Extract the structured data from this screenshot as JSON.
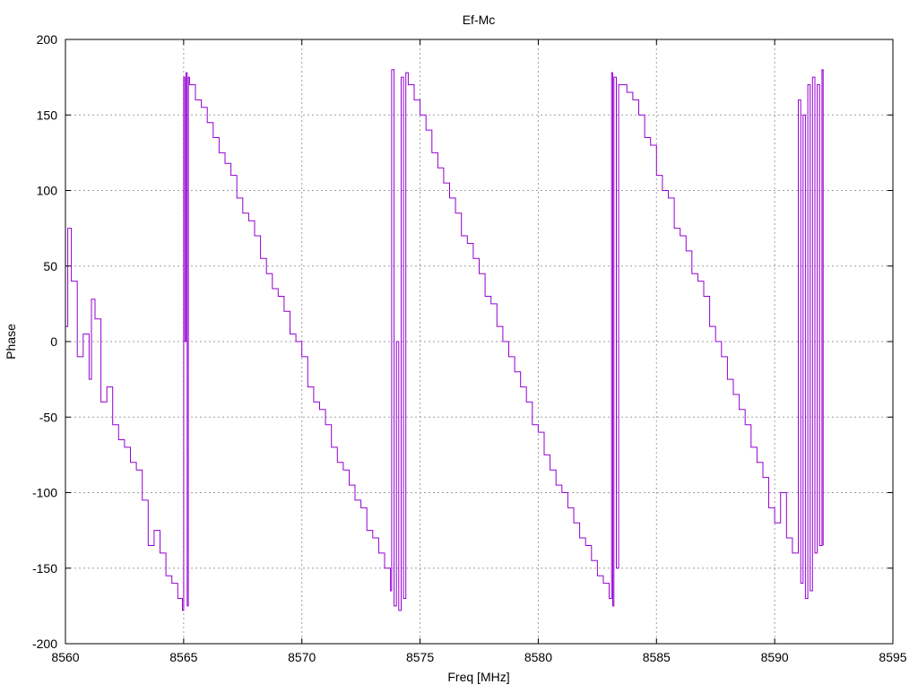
{
  "chart_data": {
    "type": "line",
    "title": "Ef-Mc",
    "xlabel": "Freq [MHz]",
    "ylabel": "Phase",
    "xlim": [
      8560,
      8595
    ],
    "ylim": [
      -200,
      200
    ],
    "xticks": [
      8560,
      8565,
      8570,
      8575,
      8580,
      8585,
      8590,
      8595
    ],
    "yticks": [
      -200,
      -150,
      -100,
      -50,
      0,
      50,
      100,
      150,
      200
    ],
    "grid": true,
    "series": [
      {
        "name": "Ef-Mc",
        "color": "#9400d3",
        "style": "steps",
        "points": [
          [
            8560,
            10
          ],
          [
            8560.1,
            75
          ],
          [
            8560.25,
            40
          ],
          [
            8560.5,
            -10
          ],
          [
            8560.75,
            5
          ],
          [
            8561,
            -25
          ],
          [
            8561.1,
            28
          ],
          [
            8561.25,
            15
          ],
          [
            8561.5,
            -40
          ],
          [
            8561.75,
            -30
          ],
          [
            8562,
            -55
          ],
          [
            8562.25,
            -65
          ],
          [
            8562.5,
            -70
          ],
          [
            8562.75,
            -80
          ],
          [
            8563,
            -85
          ],
          [
            8563.25,
            -105
          ],
          [
            8563.5,
            -135
          ],
          [
            8563.75,
            -125
          ],
          [
            8564,
            -140
          ],
          [
            8564.25,
            -155
          ],
          [
            8564.5,
            -160
          ],
          [
            8564.75,
            -170
          ],
          [
            8564.95,
            -178
          ],
          [
            8565,
            175
          ],
          [
            8565.05,
            0
          ],
          [
            8565.1,
            178
          ],
          [
            8565.15,
            -175
          ],
          [
            8565.2,
            175
          ],
          [
            8565.25,
            170
          ],
          [
            8565.5,
            160
          ],
          [
            8565.75,
            155
          ],
          [
            8566,
            145
          ],
          [
            8566.25,
            135
          ],
          [
            8566.5,
            125
          ],
          [
            8566.75,
            118
          ],
          [
            8567,
            110
          ],
          [
            8567.25,
            95
          ],
          [
            8567.5,
            85
          ],
          [
            8567.75,
            80
          ],
          [
            8568,
            70
          ],
          [
            8568.25,
            55
          ],
          [
            8568.5,
            45
          ],
          [
            8568.75,
            35
          ],
          [
            8569,
            30
          ],
          [
            8569.25,
            20
          ],
          [
            8569.5,
            5
          ],
          [
            8569.75,
            0
          ],
          [
            8570,
            -10
          ],
          [
            8570.25,
            -30
          ],
          [
            8570.5,
            -40
          ],
          [
            8570.75,
            -45
          ],
          [
            8571,
            -55
          ],
          [
            8571.25,
            -70
          ],
          [
            8571.5,
            -80
          ],
          [
            8571.75,
            -85
          ],
          [
            8572,
            -95
          ],
          [
            8572.25,
            -105
          ],
          [
            8572.5,
            -110
          ],
          [
            8572.75,
            -125
          ],
          [
            8573,
            -130
          ],
          [
            8573.25,
            -140
          ],
          [
            8573.5,
            -150
          ],
          [
            8573.75,
            -165
          ],
          [
            8573.8,
            180
          ],
          [
            8573.9,
            -175
          ],
          [
            8574,
            0
          ],
          [
            8574.1,
            -178
          ],
          [
            8574.2,
            175
          ],
          [
            8574.3,
            -170
          ],
          [
            8574.4,
            178
          ],
          [
            8574.5,
            170
          ],
          [
            8574.75,
            160
          ],
          [
            8575,
            150
          ],
          [
            8575.25,
            140
          ],
          [
            8575.5,
            125
          ],
          [
            8575.75,
            115
          ],
          [
            8576,
            105
          ],
          [
            8576.25,
            95
          ],
          [
            8576.5,
            85
          ],
          [
            8576.75,
            70
          ],
          [
            8577,
            65
          ],
          [
            8577.25,
            55
          ],
          [
            8577.5,
            45
          ],
          [
            8577.75,
            30
          ],
          [
            8578,
            25
          ],
          [
            8578.25,
            10
          ],
          [
            8578.5,
            0
          ],
          [
            8578.75,
            -10
          ],
          [
            8579,
            -20
          ],
          [
            8579.25,
            -30
          ],
          [
            8579.5,
            -40
          ],
          [
            8579.75,
            -55
          ],
          [
            8580,
            -60
          ],
          [
            8580.25,
            -75
          ],
          [
            8580.5,
            -85
          ],
          [
            8580.75,
            -95
          ],
          [
            8581,
            -100
          ],
          [
            8581.25,
            -110
          ],
          [
            8581.5,
            -120
          ],
          [
            8581.75,
            -130
          ],
          [
            8582,
            -135
          ],
          [
            8582.25,
            -145
          ],
          [
            8582.5,
            -155
          ],
          [
            8582.75,
            -160
          ],
          [
            8583,
            -170
          ],
          [
            8583.1,
            178
          ],
          [
            8583.15,
            -175
          ],
          [
            8583.2,
            175
          ],
          [
            8583.3,
            -150
          ],
          [
            8583.4,
            170
          ],
          [
            8583.75,
            165
          ],
          [
            8584,
            160
          ],
          [
            8584.25,
            150
          ],
          [
            8584.5,
            135
          ],
          [
            8584.75,
            130
          ],
          [
            8585,
            110
          ],
          [
            8585.25,
            100
          ],
          [
            8585.5,
            95
          ],
          [
            8585.75,
            75
          ],
          [
            8586,
            70
          ],
          [
            8586.25,
            60
          ],
          [
            8586.5,
            45
          ],
          [
            8586.75,
            40
          ],
          [
            8587,
            30
          ],
          [
            8587.25,
            10
          ],
          [
            8587.5,
            0
          ],
          [
            8587.75,
            -10
          ],
          [
            8588,
            -25
          ],
          [
            8588.25,
            -35
          ],
          [
            8588.5,
            -45
          ],
          [
            8588.75,
            -55
          ],
          [
            8589,
            -70
          ],
          [
            8589.25,
            -80
          ],
          [
            8589.5,
            -90
          ],
          [
            8589.75,
            -110
          ],
          [
            8590,
            -120
          ],
          [
            8590.25,
            -100
          ],
          [
            8590.5,
            -130
          ],
          [
            8590.75,
            -140
          ],
          [
            8591,
            160
          ],
          [
            8591.1,
            -160
          ],
          [
            8591.2,
            150
          ],
          [
            8591.3,
            -170
          ],
          [
            8591.4,
            170
          ],
          [
            8591.5,
            -165
          ],
          [
            8591.6,
            175
          ],
          [
            8591.7,
            -140
          ],
          [
            8591.8,
            170
          ],
          [
            8591.9,
            -135
          ],
          [
            8592,
            180
          ],
          [
            8592.05,
            -135
          ]
        ]
      }
    ]
  }
}
